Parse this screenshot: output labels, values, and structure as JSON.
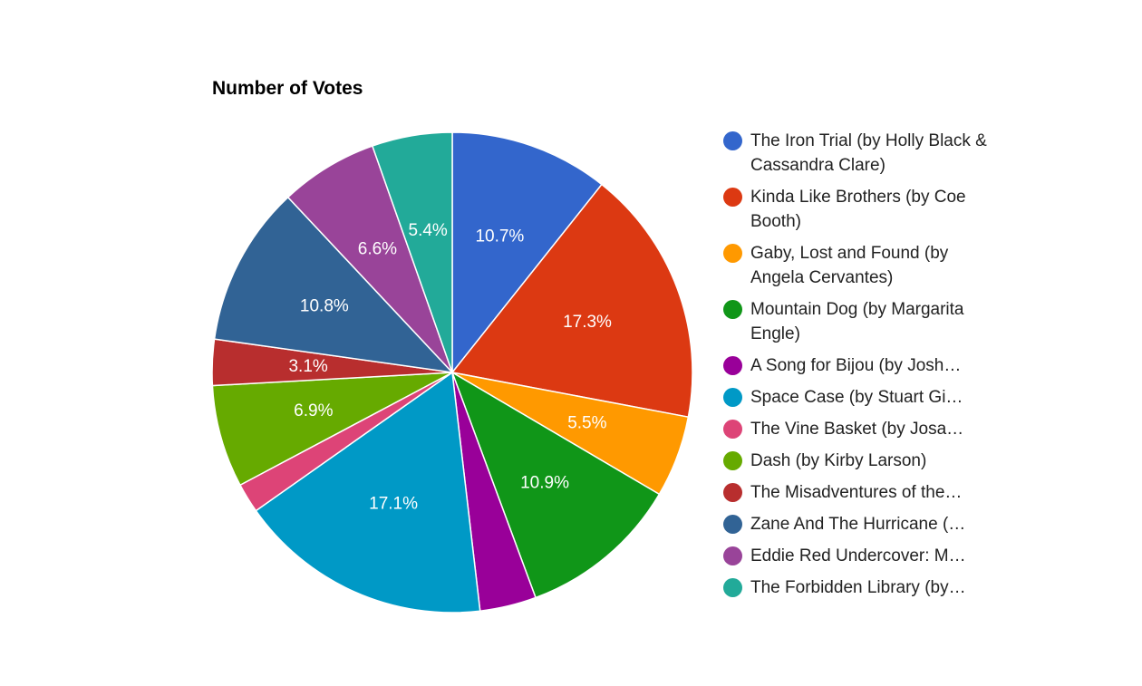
{
  "chart_data": {
    "type": "pie",
    "title": "Number of Votes",
    "legend_position": "right",
    "slices": [
      {
        "label": "The Iron Trial (by Holly Black & Cassandra Clare)",
        "legend_text": "The Iron Trial (by Holly Black & Cassandra Clare)",
        "value": 10.7,
        "display": "10.7%",
        "color": "#3366cc"
      },
      {
        "label": "Kinda Like Brothers (by Coe Booth)",
        "legend_text": "Kinda Like Brothers (by Coe Booth)",
        "value": 17.3,
        "display": "17.3%",
        "color": "#dc3912"
      },
      {
        "label": "Gaby, Lost and Found (by Angela Cervantes)",
        "legend_text": "Gaby, Lost and Found (by Angela Cervantes)",
        "value": 5.5,
        "display": "5.5%",
        "color": "#ff9900"
      },
      {
        "label": "Mountain Dog (by Margarita Engle)",
        "legend_text": "Mountain Dog (by Margarita Engle)",
        "value": 10.9,
        "display": "10.9%",
        "color": "#109618"
      },
      {
        "label": "A Song for Bijou (by Josh…",
        "legend_text": "A Song for Bijou (by Josh…",
        "value": 3.8,
        "display": "",
        "color": "#990099"
      },
      {
        "label": "Space Case (by Stuart Gi…",
        "legend_text": "Space Case (by Stuart Gi…",
        "value": 17.1,
        "display": "17.1%",
        "color": "#0099c6"
      },
      {
        "label": "The Vine Basket (by Josa…",
        "legend_text": "The Vine Basket (by Josa…",
        "value": 2.0,
        "display": "",
        "color": "#dd4477"
      },
      {
        "label": "Dash (by Kirby Larson)",
        "legend_text": "Dash (by Kirby Larson)",
        "value": 6.9,
        "display": "6.9%",
        "color": "#66aa00"
      },
      {
        "label": "The Misadventures of the…",
        "legend_text": "The Misadventures of the…",
        "value": 3.1,
        "display": "3.1%",
        "color": "#b82e2e"
      },
      {
        "label": "Zane And The Hurricane (…",
        "legend_text": "Zane And The Hurricane (…",
        "value": 10.8,
        "display": "10.8%",
        "color": "#316395"
      },
      {
        "label": "Eddie Red Undercover: M…",
        "legend_text": "Eddie Red Undercover: M…",
        "value": 6.6,
        "display": "6.6%",
        "color": "#994499"
      },
      {
        "label": "The Forbidden Library (by…",
        "legend_text": "The Forbidden Library (by…",
        "value": 5.4,
        "display": "5.4%",
        "color": "#22aa99"
      }
    ]
  }
}
